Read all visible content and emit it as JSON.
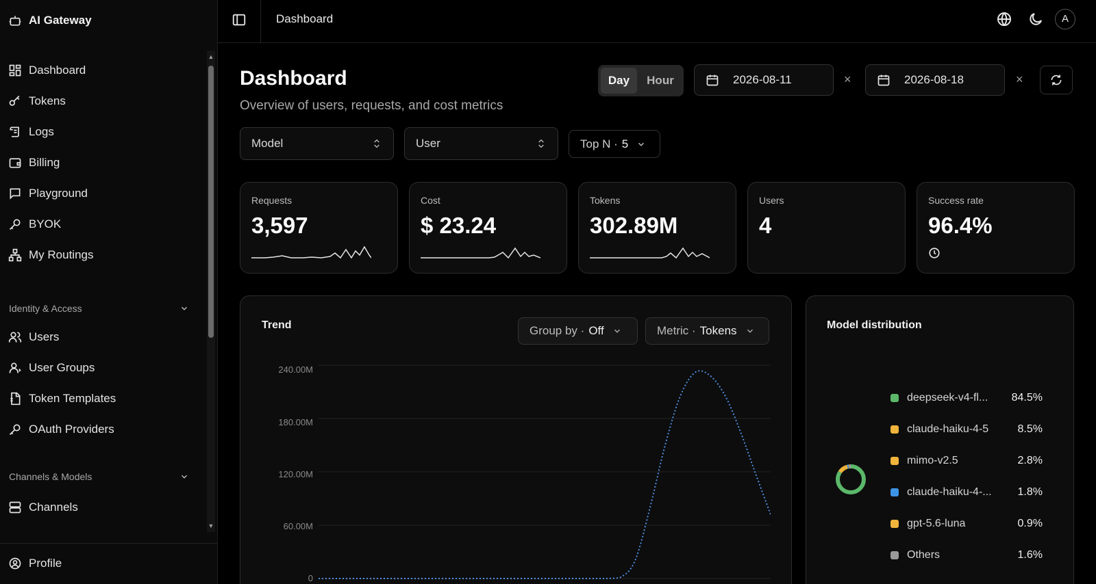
{
  "app": {
    "name": "AI Gateway"
  },
  "sidebar": {
    "items": [
      {
        "label": "Dashboard",
        "icon": "dashboard-icon"
      },
      {
        "label": "Tokens",
        "icon": "key-icon"
      },
      {
        "label": "Logs",
        "icon": "scroll-icon"
      },
      {
        "label": "Billing",
        "icon": "wallet-icon"
      },
      {
        "label": "Playground",
        "icon": "chat-icon"
      },
      {
        "label": "BYOK",
        "icon": "key-icon"
      },
      {
        "label": "My Routings",
        "icon": "routing-icon"
      }
    ],
    "sections": [
      {
        "title": "Identity & Access",
        "items": [
          {
            "label": "Users",
            "icon": "users-icon"
          },
          {
            "label": "User Groups",
            "icon": "user-group-icon"
          },
          {
            "label": "Token Templates",
            "icon": "template-icon"
          },
          {
            "label": "OAuth Providers",
            "icon": "key-icon"
          }
        ]
      },
      {
        "title": "Channels & Models",
        "items": [
          {
            "label": "Channels",
            "icon": "server-icon"
          }
        ]
      }
    ],
    "profile": {
      "label": "Profile",
      "icon": "user-circle-icon"
    }
  },
  "topbar": {
    "breadcrumb": "Dashboard",
    "avatar_initial": "A"
  },
  "page": {
    "title": "Dashboard",
    "subtitle": "Overview of users, requests, and cost metrics"
  },
  "controls": {
    "granularity": {
      "options": [
        "Day",
        "Hour"
      ],
      "selected": "Day"
    },
    "start_date": "2026-08-11",
    "end_date": "2026-08-18",
    "clear_symbol": "×",
    "filters": {
      "model": "Model",
      "user": "User",
      "topn_label": "Top N ·",
      "topn_value": "5"
    }
  },
  "kpis": [
    {
      "label": "Requests",
      "value": "3,597"
    },
    {
      "label": "Cost",
      "value": "$ 23.24"
    },
    {
      "label": "Tokens",
      "value": "302.89M"
    },
    {
      "label": "Users",
      "value": "4"
    },
    {
      "label": "Success rate",
      "value": "96.4%"
    }
  ],
  "trend": {
    "title": "Trend",
    "group_by_label": "Group by ·",
    "group_by_value": "Off",
    "metric_label": "Metric ·",
    "metric_value": "Tokens"
  },
  "distribution": {
    "title": "Model distribution",
    "entries": [
      {
        "name": "deepseek-v4-fl...",
        "pct": "84.5%",
        "color": "#5bb86a",
        "value": 84.5
      },
      {
        "name": "claude-haiku-4-5",
        "pct": "8.5%",
        "color": "#f0b43c",
        "value": 8.5
      },
      {
        "name": "mimo-v2.5",
        "pct": "2.8%",
        "color": "#f0b43c",
        "value": 2.8
      },
      {
        "name": "claude-haiku-4-...",
        "pct": "1.8%",
        "color": "#3d94e6",
        "value": 1.8
      },
      {
        "name": "gpt-5.6-luna",
        "pct": "0.9%",
        "color": "#f0b43c",
        "value": 0.9
      },
      {
        "name": "Others",
        "pct": "1.6%",
        "color": "#9a9a9a",
        "value": 1.6
      }
    ]
  },
  "chart_data": {
    "type": "line",
    "title": "Trend",
    "xlabel": "",
    "ylabel": "",
    "y_ticks": [
      "0",
      "60.00M",
      "120.00M",
      "180.00M",
      "240.00M"
    ],
    "ylim": [
      0,
      240000000
    ],
    "series": [
      {
        "color": "#4f8fe0",
        "values": [
          0,
          0,
          0,
          0,
          0,
          0,
          0,
          0,
          0,
          0,
          0,
          0,
          0,
          0,
          0,
          0,
          0,
          0,
          0,
          0,
          1000000,
          20000000,
          80000000,
          150000000,
          205000000,
          232000000,
          228000000,
          205000000,
          165000000,
          118000000,
          72000000
        ]
      }
    ],
    "grid": true,
    "legend": "none"
  }
}
